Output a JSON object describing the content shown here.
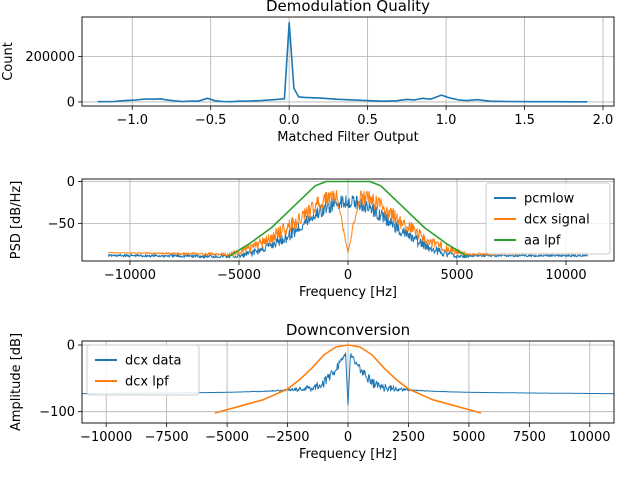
{
  "chart_data": [
    {
      "type": "line",
      "title": "Demodulation Quality",
      "xlabel": "Matched Filter Output",
      "ylabel": "Count",
      "xlim": [
        -1.32,
        2.07
      ],
      "ylim": [
        -18000,
        375000
      ],
      "xticks": [
        -1.0,
        -0.5,
        0.0,
        0.5,
        1.0,
        1.5,
        2.0
      ],
      "xtick_labels": [
        "−1.0",
        "−0.5",
        "0.0",
        "0.5",
        "1.0",
        "1.5",
        "2.0"
      ],
      "yticks": [
        0,
        200000
      ],
      "ytick_labels": [
        "0",
        "200000"
      ],
      "grid": true,
      "series": [
        {
          "color": "#1f77b4",
          "x": [
            -1.22,
            -1.12,
            -1.05,
            -0.98,
            -0.92,
            -0.87,
            -0.82,
            -0.78,
            -0.73,
            -0.68,
            -0.62,
            -0.58,
            -0.52,
            -0.47,
            -0.42,
            -0.37,
            -0.32,
            -0.25,
            -0.18,
            -0.1,
            -0.03,
            0.0,
            0.03,
            0.06,
            0.1,
            0.2,
            0.3,
            0.4,
            0.5,
            0.6,
            0.68,
            0.75,
            0.8,
            0.85,
            0.9,
            0.97,
            1.02,
            1.08,
            1.13,
            1.2,
            1.28,
            1.4,
            1.55,
            1.7,
            1.8,
            1.9
          ],
          "y": [
            1000,
            2000,
            6000,
            8000,
            13000,
            12000,
            14000,
            9000,
            5000,
            2000,
            4000,
            3000,
            16000,
            5000,
            2000,
            1000,
            3000,
            4000,
            6000,
            10000,
            14000,
            350000,
            60000,
            22000,
            20000,
            17000,
            12000,
            9000,
            6000,
            3000,
            5000,
            11000,
            9000,
            16000,
            12000,
            30000,
            18000,
            9000,
            6000,
            10000,
            3000,
            2000,
            1000,
            1000,
            500,
            500
          ]
        }
      ]
    },
    {
      "type": "line",
      "title": "",
      "xlabel": "Frequency [Hz]",
      "ylabel": "PSD [dB/Hz]",
      "xlim": [
        -12200,
        12200
      ],
      "ylim": [
        -95,
        3
      ],
      "xticks": [
        -10000,
        -5000,
        0,
        5000,
        10000
      ],
      "xtick_labels": [
        "−10000",
        "−5000",
        "0",
        "5000",
        "10000"
      ],
      "yticks": [
        0,
        -50
      ],
      "ytick_labels": [
        "0",
        "−50"
      ],
      "grid": true,
      "legend": "right",
      "series": [
        {
          "name": "pcmlow",
          "color": "#1f77b4",
          "x": [
            -11000,
            -5000,
            -4500,
            -4000,
            -3500,
            -3000,
            -2500,
            -2000,
            -1500,
            -1000,
            -500,
            0,
            500,
            1000,
            1500,
            2000,
            2500,
            3000,
            3500,
            4000,
            4500,
            5000,
            6000,
            11000
          ],
          "y": [
            -87,
            -87,
            -82,
            -77,
            -70,
            -62,
            -52,
            -42,
            -32,
            -24,
            -18,
            -15,
            -18,
            -24,
            -32,
            -42,
            -52,
            -62,
            -70,
            -77,
            -82,
            -87,
            -87,
            -87
          ],
          "noise": [
            3,
            5,
            8,
            10,
            12,
            14,
            16,
            16,
            16,
            16,
            16,
            16,
            16,
            16,
            16,
            16,
            16,
            14,
            12,
            10,
            8,
            5,
            3,
            3
          ]
        },
        {
          "name": "dcx signal",
          "color": "#ff7f0e",
          "x": [
            -11000,
            -5500,
            -5000,
            -4500,
            -4000,
            -3500,
            -3000,
            -2500,
            -2000,
            -1500,
            -1000,
            -500,
            0,
            500,
            1000,
            1500,
            2000,
            2500,
            3000,
            3500,
            4000,
            4500,
            5000,
            5500,
            11000
          ],
          "y": [
            -85,
            -85,
            -80,
            -75,
            -68,
            -60,
            -50,
            -40,
            -30,
            -20,
            -12,
            -10,
            -85,
            -10,
            -12,
            -20,
            -30,
            -40,
            -50,
            -60,
            -68,
            -75,
            -80,
            -85,
            -85
          ],
          "noise": [
            0,
            4,
            8,
            10,
            12,
            14,
            16,
            18,
            18,
            18,
            18,
            18,
            0,
            18,
            18,
            18,
            18,
            18,
            16,
            14,
            12,
            10,
            8,
            4,
            0
          ]
        },
        {
          "name": "aa lpf",
          "color": "#2ca02c",
          "x": [
            -5500,
            -4500,
            -3500,
            -2500,
            -1500,
            -1000,
            0,
            1000,
            1500,
            2500,
            3500,
            4500,
            5500
          ],
          "y": [
            -90,
            -74,
            -55,
            -30,
            -5,
            0,
            0,
            0,
            -5,
            -30,
            -55,
            -74,
            -90
          ]
        }
      ]
    },
    {
      "type": "line",
      "title": "Downconversion",
      "xlabel": "Frequency [Hz]",
      "ylabel": "Amplitude [dB]",
      "xlim": [
        -11000,
        11000
      ],
      "ylim": [
        -117,
        6
      ],
      "xticks": [
        -10000,
        -7500,
        -5000,
        -2500,
        0,
        2500,
        5000,
        7500,
        10000
      ],
      "xtick_labels": [
        "−10000",
        "−7500",
        "−5000",
        "−2500",
        "0",
        "2500",
        "5000",
        "7500",
        "10000"
      ],
      "yticks": [
        0,
        -100
      ],
      "ytick_labels": [
        "0",
        "−100"
      ],
      "grid": true,
      "legend": "upper left",
      "series": [
        {
          "name": "dcx data",
          "color": "#1f77b4",
          "x": [
            -11000,
            -7500,
            -5000,
            -3500,
            -2500,
            -2000,
            -1500,
            -1000,
            -500,
            -100,
            0,
            100,
            500,
            1000,
            1500,
            2000,
            2500,
            3500,
            5000,
            7500,
            11000
          ],
          "y": [
            -73,
            -72,
            -71,
            -69,
            -66,
            -62,
            -58,
            -50,
            -30,
            -10,
            -90,
            -10,
            -30,
            -50,
            -58,
            -62,
            -66,
            -69,
            -71,
            -72,
            -73
          ],
          "noise": [
            0,
            0,
            0,
            1,
            3,
            8,
            12,
            14,
            12,
            6,
            0,
            6,
            12,
            14,
            12,
            8,
            3,
            1,
            0,
            0,
            0
          ]
        },
        {
          "name": "dcx lpf",
          "color": "#ff7f0e",
          "x": [
            -5500,
            -3500,
            -2500,
            -2000,
            -1500,
            -1000,
            -500,
            0,
            500,
            1000,
            1500,
            2000,
            2500,
            3500,
            5500
          ],
          "y": [
            -102,
            -82,
            -66,
            -52,
            -35,
            -15,
            -3,
            0,
            -3,
            -15,
            -35,
            -52,
            -66,
            -82,
            -102
          ]
        }
      ]
    }
  ]
}
